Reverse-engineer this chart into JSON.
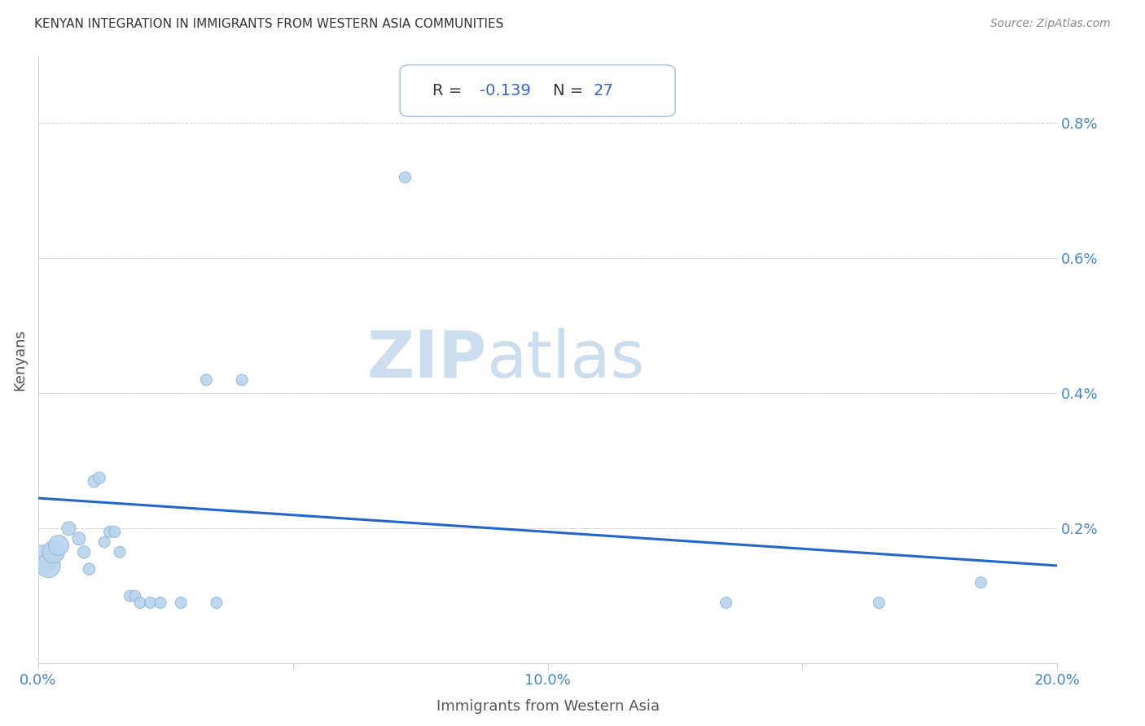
{
  "title": "KENYAN INTEGRATION IN IMMIGRANTS FROM WESTERN ASIA COMMUNITIES",
  "source": "Source: ZipAtlas.com",
  "xlabel": "Immigrants from Western Asia",
  "ylabel": "Kenyans",
  "R_label": "R = ",
  "R_value": "-0.139",
  "N_label": "N = ",
  "N_value": "27",
  "regression_line_color": "#2266cc",
  "dot_color": "#b8d4ee",
  "dot_edge_color": "#8ab4d8",
  "watermark_zip_color": "#ccddf0",
  "watermark_atlas_color": "#ccddf0",
  "xlim": [
    0.0,
    0.2
  ],
  "ylim": [
    0.0,
    0.009
  ],
  "xticks": [
    0.0,
    0.05,
    0.1,
    0.15,
    0.2
  ],
  "yticks": [
    0.0,
    0.002,
    0.004,
    0.006,
    0.008
  ],
  "ytick_labels": [
    "",
    "0.2%",
    "0.4%",
    "0.6%",
    "0.8%"
  ],
  "xtick_labels": [
    "0.0%",
    "",
    "10.0%",
    "",
    "20.0%"
  ],
  "scatter_x": [
    0.001,
    0.002,
    0.003,
    0.004,
    0.006,
    0.008,
    0.009,
    0.01,
    0.011,
    0.012,
    0.013,
    0.014,
    0.015,
    0.016,
    0.018,
    0.019,
    0.02,
    0.022,
    0.024,
    0.028,
    0.033,
    0.035,
    0.04,
    0.072,
    0.135,
    0.165,
    0.185
  ],
  "scatter_y": [
    0.00155,
    0.00145,
    0.00165,
    0.00175,
    0.002,
    0.00185,
    0.00165,
    0.0014,
    0.0027,
    0.00275,
    0.0018,
    0.00195,
    0.00195,
    0.00165,
    0.001,
    0.001,
    0.0009,
    0.0009,
    0.0009,
    0.0009,
    0.0042,
    0.0009,
    0.0042,
    0.0072,
    0.0009,
    0.0009,
    0.0012
  ],
  "scatter_sizes": [
    600,
    450,
    380,
    320,
    150,
    130,
    120,
    110,
    120,
    110,
    100,
    100,
    100,
    100,
    100,
    100,
    100,
    100,
    100,
    100,
    100,
    100,
    100,
    100,
    100,
    100,
    100
  ],
  "regression_x0": 0.0,
  "regression_y0": 0.00245,
  "regression_x1": 0.2,
  "regression_y1": 0.00145,
  "background_color": "#ffffff",
  "grid_color": "#d0d0d0",
  "title_color": "#333333",
  "source_color": "#888888",
  "tick_color": "#4488cc",
  "label_color": "#555555",
  "R_text_color": "#333333",
  "RN_value_color": "#3366cc",
  "box_edge_color": "#b0c8e0",
  "box_face_color": "#ffffff"
}
